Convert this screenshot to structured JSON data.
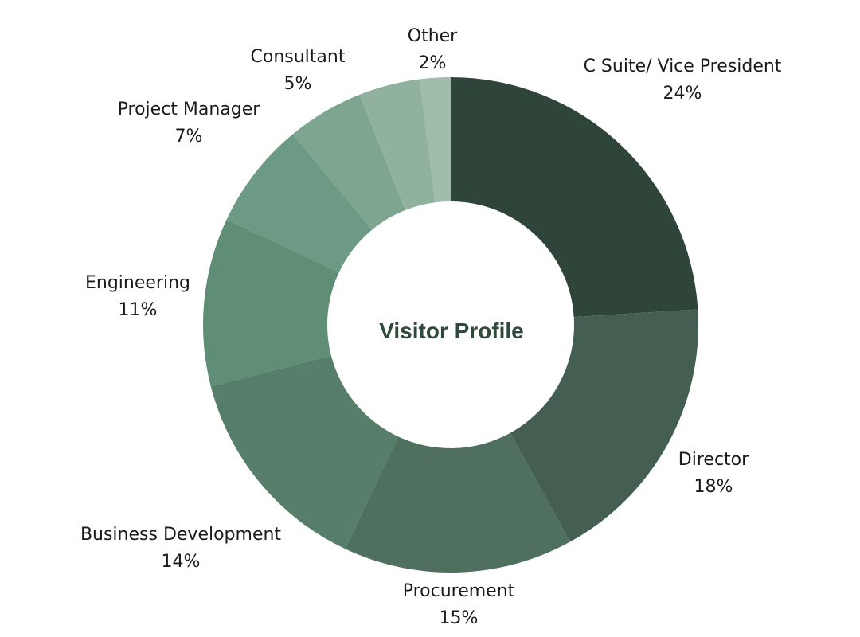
{
  "chart_data": {
    "type": "pie",
    "donut": true,
    "title": "Visitor Profile",
    "slices": [
      {
        "label": "C Suite/ Vice President",
        "value_label": "24%",
        "value": 24,
        "color": "#30453a"
      },
      {
        "label": "Director",
        "value_label": "18%",
        "value": 18,
        "color": "#445f51"
      },
      {
        "label": "Procurement",
        "value_label": "15%",
        "value": 15,
        "color": "#4f705e"
      },
      {
        "label": "Business Development",
        "value_label": "14%",
        "value": 14,
        "color": "#577e6a"
      },
      {
        "label": "Engineering",
        "value_label": "11%",
        "value": 11,
        "color": "#5f8d76"
      },
      {
        "label": "Project Manager",
        "value_label": "7%",
        "value": 7,
        "color": "#6c9a84"
      },
      {
        "label": "Consultant",
        "value_label": "5%",
        "value": 5,
        "color": "#7ea590"
      },
      {
        "label": "",
        "value_label": "",
        "value": 4,
        "color": "#8fb19e"
      },
      {
        "label": "Other",
        "value_label": "2%",
        "value": 2,
        "color": "#9ebca9"
      }
    ],
    "legend": "none"
  }
}
